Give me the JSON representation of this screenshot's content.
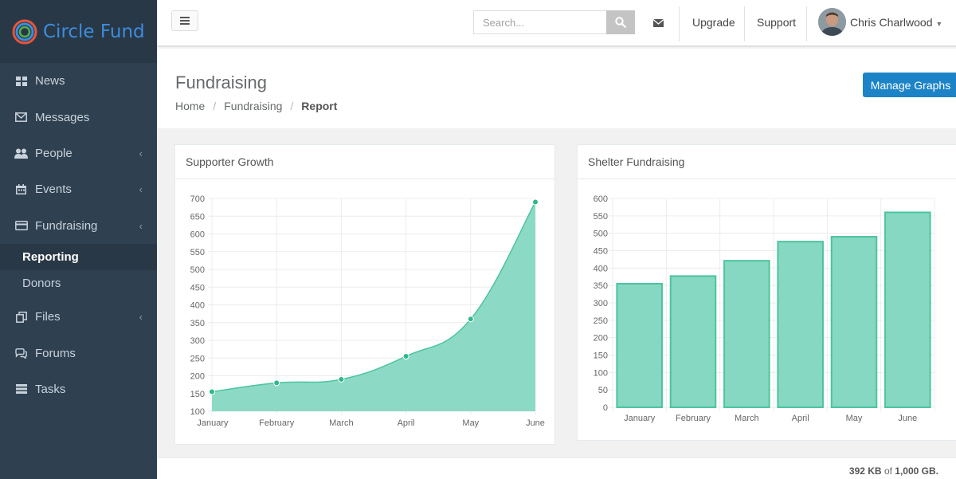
{
  "brand": {
    "name": "Circle Fund"
  },
  "sidebar": {
    "items": [
      {
        "label": "News",
        "icon": "th-large-icon"
      },
      {
        "label": "Messages",
        "icon": "envelope-icon"
      },
      {
        "label": "People",
        "icon": "users-icon"
      },
      {
        "label": "Events",
        "icon": "calendar-icon"
      },
      {
        "label": "Fundraising",
        "icon": "credit-card-icon"
      },
      {
        "label": "Files",
        "icon": "files-icon"
      },
      {
        "label": "Forums",
        "icon": "comments-icon"
      },
      {
        "label": "Tasks",
        "icon": "tasks-icon"
      }
    ],
    "sub_items": [
      {
        "label": "Reporting",
        "active": true
      },
      {
        "label": "Donors",
        "active": false
      }
    ]
  },
  "topbar": {
    "search_placeholder": "Search...",
    "upgrade": "Upgrade",
    "support": "Support",
    "user_name": "Chris Charlwood"
  },
  "page": {
    "title": "Fundraising",
    "breadcrumb": [
      "Home",
      "Fundraising",
      "Report"
    ],
    "manage_button": "Manage Graphs"
  },
  "panels": {
    "supporter_title": "Supporter Growth",
    "shelter_title": "Shelter Fundraising"
  },
  "footer": {
    "used": "392 KB",
    "of": "of",
    "total": "1,000 GB."
  },
  "colors": {
    "accent": "#1c84c6",
    "sidebar": "#2f4050",
    "chart_fill": "#86d8c2",
    "chart_line": "#4cc49f"
  },
  "chart_data": [
    {
      "type": "area",
      "title": "Supporter Growth",
      "categories": [
        "January",
        "February",
        "March",
        "April",
        "May",
        "June"
      ],
      "values": [
        155,
        180,
        190,
        255,
        360,
        690
      ],
      "ylim": [
        100,
        700
      ],
      "yticks": [
        100,
        150,
        200,
        250,
        300,
        350,
        400,
        450,
        500,
        550,
        600,
        650,
        700
      ],
      "grid": true
    },
    {
      "type": "bar",
      "title": "Shelter Fundraising",
      "categories": [
        "January",
        "February",
        "March",
        "April",
        "May",
        "June"
      ],
      "values": [
        355,
        377,
        421,
        476,
        490,
        560
      ],
      "ylim": [
        0,
        600
      ],
      "yticks": [
        0,
        50,
        100,
        150,
        200,
        250,
        300,
        350,
        400,
        450,
        500,
        550,
        600
      ],
      "grid": true
    }
  ]
}
